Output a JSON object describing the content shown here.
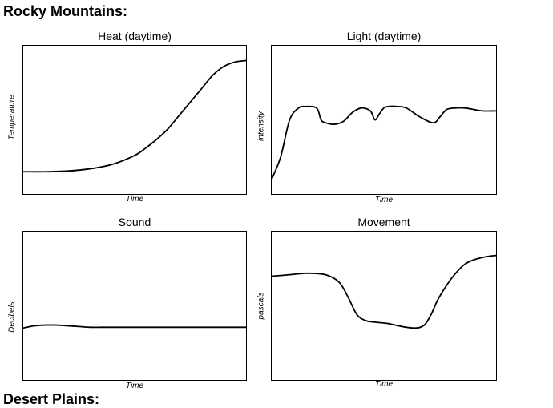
{
  "page": {
    "heading": "Rocky Mountains:",
    "next_heading_partial": "Desert Plains:"
  },
  "chart_data": [
    {
      "type": "line",
      "title": "Heat (daytime)",
      "xlabel": "Time",
      "ylabel": "Temperature",
      "grid": false,
      "xlim": [
        0,
        100
      ],
      "ylim": [
        0,
        100
      ],
      "series": [
        {
          "x": [
            0,
            10,
            20,
            30,
            40,
            50,
            55,
            60,
            65,
            70,
            75,
            80,
            85,
            90,
            95,
            100
          ],
          "y": [
            15,
            15,
            15.5,
            17,
            20,
            26,
            31,
            37,
            44,
            53,
            62,
            71,
            80,
            86,
            89,
            90
          ]
        }
      ]
    },
    {
      "type": "line",
      "title": "Light (daytime)",
      "xlabel": "Time",
      "ylabel": "intensity",
      "grid": false,
      "xlim": [
        0,
        100
      ],
      "ylim": [
        0,
        100
      ],
      "series": [
        {
          "x": [
            0,
            4,
            8,
            12,
            15,
            20,
            22,
            24,
            28,
            32,
            36,
            40,
            44,
            46,
            48,
            50,
            52,
            56,
            60,
            66,
            72,
            75,
            78,
            82,
            86,
            90,
            94,
            100
          ],
          "y": [
            10,
            25,
            50,
            58,
            59,
            58,
            50,
            48,
            47,
            49,
            55,
            58,
            56,
            50,
            54,
            58,
            59,
            59,
            58,
            52,
            48,
            52,
            57,
            58,
            58,
            57,
            56,
            56
          ]
        }
      ]
    },
    {
      "type": "line",
      "title": "Sound",
      "xlabel": "Time",
      "ylabel": "Decibels",
      "grid": false,
      "xlim": [
        0,
        100
      ],
      "ylim": [
        0,
        100
      ],
      "series": [
        {
          "x": [
            0,
            5,
            10,
            15,
            20,
            25,
            30,
            35,
            40,
            50,
            60,
            70,
            80,
            90,
            100
          ],
          "y": [
            35,
            36.5,
            37,
            37,
            36.5,
            36,
            35.5,
            35.5,
            35.5,
            35.5,
            35.5,
            35.5,
            35.5,
            35.5,
            35.5
          ]
        }
      ]
    },
    {
      "type": "line",
      "title": "Movement",
      "xlabel": "Time",
      "ylabel": "pascals",
      "grid": false,
      "xlim": [
        0,
        100
      ],
      "ylim": [
        0,
        100
      ],
      "series": [
        {
          "x": [
            0,
            8,
            16,
            24,
            30,
            34,
            38,
            42,
            46,
            52,
            58,
            64,
            68,
            71,
            74,
            78,
            82,
            86,
            90,
            95,
            100
          ],
          "y": [
            70,
            71,
            72,
            71,
            66,
            56,
            44,
            40,
            39,
            38,
            36,
            35,
            37,
            44,
            54,
            64,
            72,
            78,
            81,
            83,
            84
          ]
        }
      ]
    }
  ]
}
